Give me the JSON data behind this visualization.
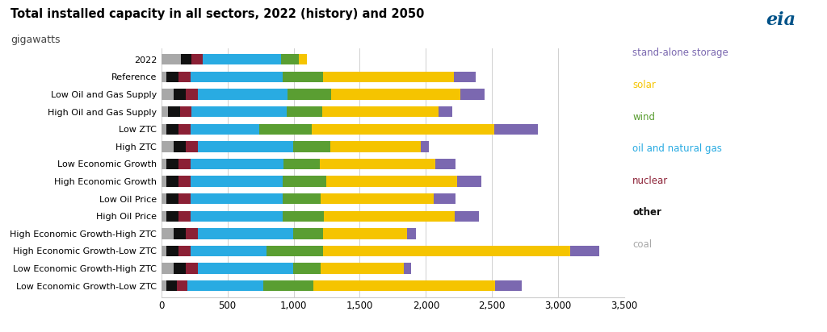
{
  "title": "Total installed capacity in all sectors, 2022 (history) and 2050",
  "subtitle": "gigawatts",
  "categories": [
    "2022",
    "Reference",
    "Low Oil and Gas Supply",
    "High Oil and Gas Supply",
    "Low ZTC",
    "High ZTC",
    "Low Economic Growth",
    "High Economic Growth",
    "Low Oil Price",
    "High Oil Price",
    "High Economic Growth-High ZTC",
    "High Economic Growth-Low ZTC",
    "Low Economic Growth-High ZTC",
    "Low Economic Growth-Low ZTC"
  ],
  "segment_names": [
    "coal",
    "other",
    "nuclear",
    "oil and natural gas",
    "wind",
    "solar",
    "stand-alone storage"
  ],
  "colors": [
    "#a8a8a8",
    "#111111",
    "#8b2035",
    "#29abe2",
    "#5a9e32",
    "#f5c400",
    "#7b68b0"
  ],
  "legend_labels": [
    "stand-alone storage",
    "solar",
    "wind",
    "oil and natural gas",
    "nuclear",
    "other",
    "coal"
  ],
  "legend_text_colors": [
    "#7b68b0",
    "#f5c400",
    "#5a9e32",
    "#29abe2",
    "#8b2035",
    "#111111",
    "#a8a8a8"
  ],
  "data": [
    [
      148,
      80,
      85,
      595,
      130,
      65,
      0
    ],
    [
      40,
      90,
      90,
      700,
      305,
      985,
      165
    ],
    [
      95,
      90,
      90,
      680,
      330,
      975,
      185
    ],
    [
      50,
      90,
      90,
      720,
      265,
      880,
      105
    ],
    [
      40,
      90,
      90,
      520,
      395,
      1380,
      330
    ],
    [
      95,
      90,
      90,
      720,
      285,
      680,
      65
    ],
    [
      40,
      90,
      90,
      705,
      275,
      870,
      155
    ],
    [
      40,
      90,
      90,
      700,
      330,
      985,
      185
    ],
    [
      40,
      90,
      90,
      700,
      285,
      855,
      165
    ],
    [
      40,
      90,
      90,
      700,
      310,
      985,
      185
    ],
    [
      95,
      90,
      90,
      720,
      225,
      640,
      65
    ],
    [
      40,
      90,
      90,
      575,
      425,
      1870,
      220
    ],
    [
      95,
      90,
      90,
      720,
      210,
      630,
      50
    ],
    [
      40,
      80,
      80,
      570,
      380,
      1370,
      205
    ]
  ],
  "xlim": [
    0,
    3500
  ],
  "xticks": [
    0,
    500,
    1000,
    1500,
    2000,
    2500,
    3000,
    3500
  ],
  "xtick_labels": [
    "0",
    "500",
    "1,000",
    "1,500",
    "2,000",
    "2,500",
    "3,000",
    "3,500"
  ],
  "background_color": "#ffffff",
  "bar_height": 0.62,
  "eia_logo_color": "#005288"
}
